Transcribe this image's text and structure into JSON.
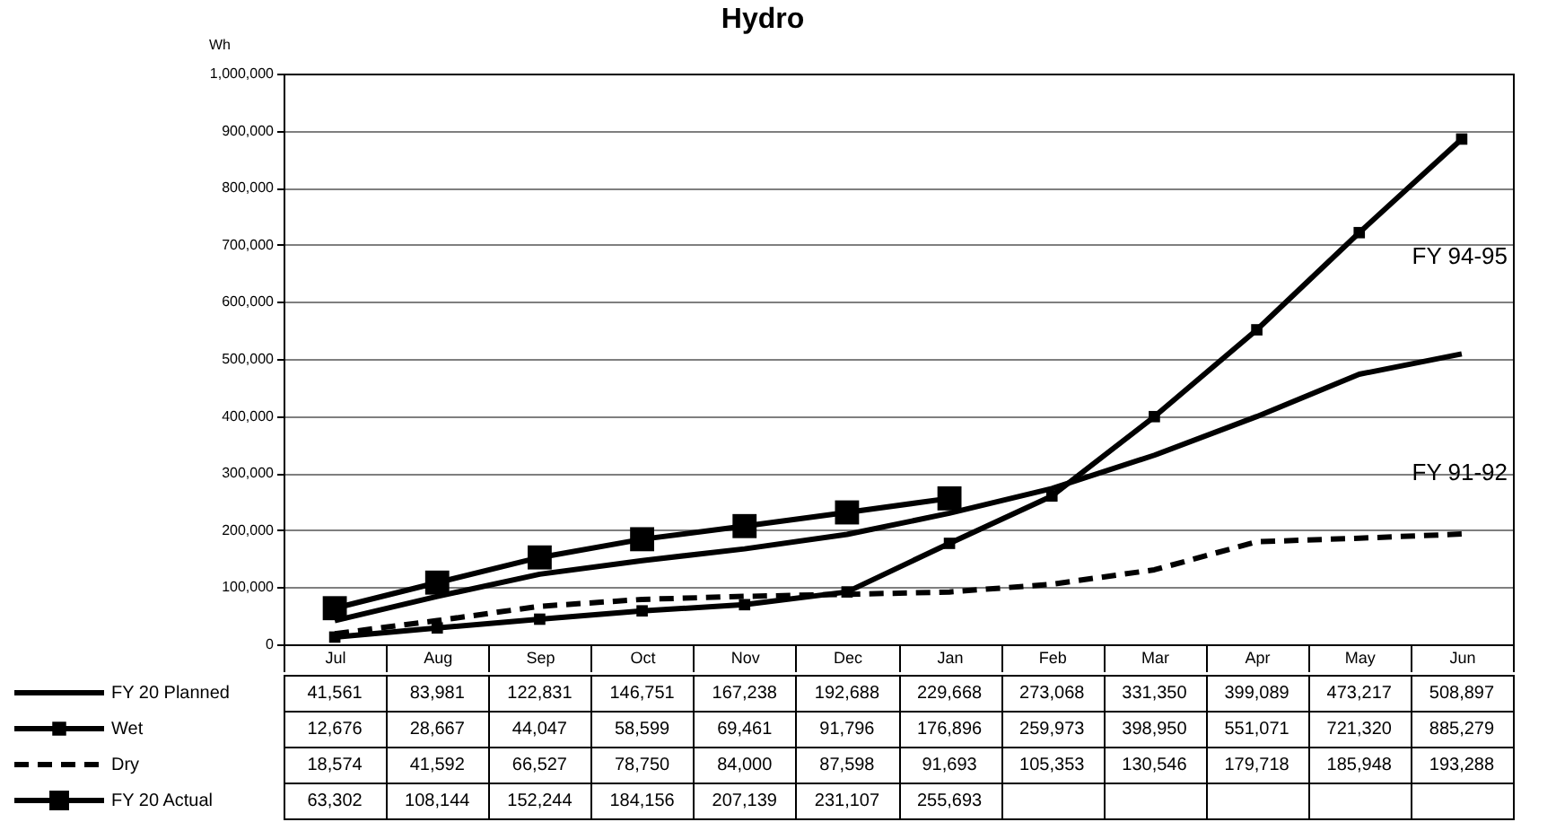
{
  "chart_data": {
    "type": "line",
    "title": "Hydro",
    "ylabel": "Wh",
    "categories": [
      "Jul",
      "Aug",
      "Sep",
      "Oct",
      "Nov",
      "Dec",
      "Jan",
      "Feb",
      "Mar",
      "Apr",
      "May",
      "Jun"
    ],
    "series": [
      {
        "name": "FY 20 Planned",
        "color": "#000000",
        "line_style": "solid",
        "values": [
          41561,
          83981,
          122831,
          146751,
          167238,
          192688,
          229668,
          273068,
          331350,
          399089,
          473217,
          508897
        ],
        "value_labels": [
          "41,561",
          "83,981",
          "122,831",
          "146,751",
          "167,238",
          "192,688",
          "229,668",
          "273,068",
          "331,350",
          "399,089",
          "473,217",
          "508,897"
        ]
      },
      {
        "name": "Wet",
        "color": "#000000",
        "line_style": "solid",
        "marker": "square",
        "values": [
          12676,
          28667,
          44047,
          58599,
          69461,
          91796,
          176896,
          259973,
          398950,
          551071,
          721320,
          885279
        ],
        "value_labels": [
          "12,676",
          "28,667",
          "44,047",
          "58,599",
          "69,461",
          "91,796",
          "176,896",
          "259,973",
          "398,950",
          "551,071",
          "721,320",
          "885,279"
        ]
      },
      {
        "name": "Dry",
        "color": "#000000",
        "line_style": "dashed",
        "values": [
          18574,
          41592,
          66527,
          78750,
          84000,
          87598,
          91693,
          105353,
          130546,
          179718,
          185948,
          193288
        ],
        "value_labels": [
          "18,574",
          "41,592",
          "66,527",
          "78,750",
          "84,000",
          "87,598",
          "91,693",
          "105,353",
          "130,546",
          "179,718",
          "185,948",
          "193,288"
        ]
      },
      {
        "name": "FY 20 Actual",
        "color": "#000000",
        "line_style": "solid",
        "marker": "square",
        "values": [
          63302,
          108144,
          152244,
          184156,
          207139,
          231107,
          255693,
          null,
          null,
          null,
          null,
          null
        ],
        "value_labels": [
          "63,302",
          "108,144",
          "152,244",
          "184,156",
          "207,139",
          "231,107",
          "255,693",
          null,
          null,
          null,
          null,
          null
        ]
      }
    ],
    "ylim": [
      0,
      1000000
    ],
    "yticks": [
      0,
      {
        "value": 100000,
        "label": "100,000"
      },
      {
        "value": 200000,
        "label": "200,000"
      },
      {
        "value": 300000,
        "label": "300,000"
      },
      {
        "value": 400000,
        "label": "400,000"
      },
      {
        "value": 500000,
        "label": "500,000"
      },
      {
        "value": 600000,
        "label": "600,000"
      },
      {
        "value": 700000,
        "label": "700,000"
      },
      {
        "value": 800000,
        "label": "800,000"
      },
      {
        "value": 900000,
        "label": "900,000"
      },
      {
        "value": 1000000,
        "label": "1,000,000"
      }
    ],
    "grid": "y",
    "legend": "bottom",
    "annotations": [
      "FY 94-95",
      "FY 91-92"
    ]
  }
}
